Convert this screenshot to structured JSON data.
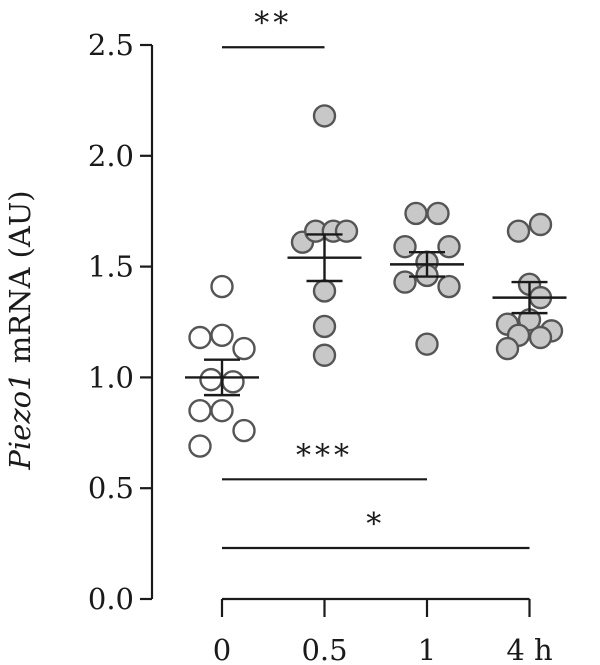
{
  "chart_data": {
    "type": "scatter",
    "ylabel_italic": "Piezo1",
    "ylabel_rest": " mRNA (AU)",
    "ylim": [
      0,
      2.5
    ],
    "yticks": [
      {
        "value": 0.0,
        "label": "0.0"
      },
      {
        "value": 0.5,
        "label": "0.5"
      },
      {
        "value": 1.0,
        "label": "1.0"
      },
      {
        "value": 1.5,
        "label": "1.5"
      },
      {
        "value": 2.0,
        "label": "2.0"
      },
      {
        "value": 2.5,
        "label": "2.5"
      }
    ],
    "categories": [
      "0",
      "0.5",
      "1",
      "4 h"
    ],
    "groups": [
      {
        "category": "0",
        "fill": "#ffffff",
        "mean": 1.0,
        "sem": 0.08,
        "points": [
          {
            "offset": 0,
            "y": 1.41
          },
          {
            "offset": -1,
            "y": 1.18
          },
          {
            "offset": 0,
            "y": 1.19
          },
          {
            "offset": 1,
            "y": 1.13
          },
          {
            "offset": -0.5,
            "y": 0.99
          },
          {
            "offset": 0.5,
            "y": 0.98
          },
          {
            "offset": -1,
            "y": 0.85
          },
          {
            "offset": 0,
            "y": 0.85
          },
          {
            "offset": 1,
            "y": 0.76
          },
          {
            "offset": -1,
            "y": 0.69
          }
        ]
      },
      {
        "category": "0.5",
        "fill": "#c8c8c8",
        "mean": 1.54,
        "sem": 0.105,
        "points": [
          {
            "offset": 0,
            "y": 2.18
          },
          {
            "offset": -1,
            "y": 1.61
          },
          {
            "offset": -0.4,
            "y": 1.66
          },
          {
            "offset": 0.4,
            "y": 1.66
          },
          {
            "offset": 1,
            "y": 1.66
          },
          {
            "offset": 0,
            "y": 1.39
          },
          {
            "offset": 0,
            "y": 1.23
          },
          {
            "offset": 0,
            "y": 1.1
          }
        ]
      },
      {
        "category": "1",
        "fill": "#c8c8c8",
        "mean": 1.51,
        "sem": 0.055,
        "points": [
          {
            "offset": -0.5,
            "y": 1.74
          },
          {
            "offset": 0.5,
            "y": 1.74
          },
          {
            "offset": -1,
            "y": 1.59
          },
          {
            "offset": 1,
            "y": 1.59
          },
          {
            "offset": 0,
            "y": 1.52
          },
          {
            "offset": -1,
            "y": 1.43
          },
          {
            "offset": 1,
            "y": 1.41
          },
          {
            "offset": 0,
            "y": 1.46
          },
          {
            "offset": 0,
            "y": 1.15
          }
        ]
      },
      {
        "category": "4 h",
        "fill": "#c8c8c8",
        "mean": 1.36,
        "sem": 0.07,
        "points": [
          {
            "offset": 0.5,
            "y": 1.69
          },
          {
            "offset": -0.5,
            "y": 1.66
          },
          {
            "offset": 0,
            "y": 1.42
          },
          {
            "offset": 0.5,
            "y": 1.36
          },
          {
            "offset": -1,
            "y": 1.24
          },
          {
            "offset": 0,
            "y": 1.26
          },
          {
            "offset": 1,
            "y": 1.21
          },
          {
            "offset": 0.5,
            "y": 1.18
          },
          {
            "offset": -0.5,
            "y": 1.19
          },
          {
            "offset": -1,
            "y": 1.13
          }
        ]
      }
    ],
    "significance": [
      {
        "from": 0,
        "to": 1,
        "y": 2.49,
        "label": "**"
      },
      {
        "from": 0,
        "to": 2,
        "y": 0.54,
        "label": "***"
      },
      {
        "from": 0,
        "to": 3,
        "y": 0.23,
        "label": "*"
      }
    ]
  }
}
